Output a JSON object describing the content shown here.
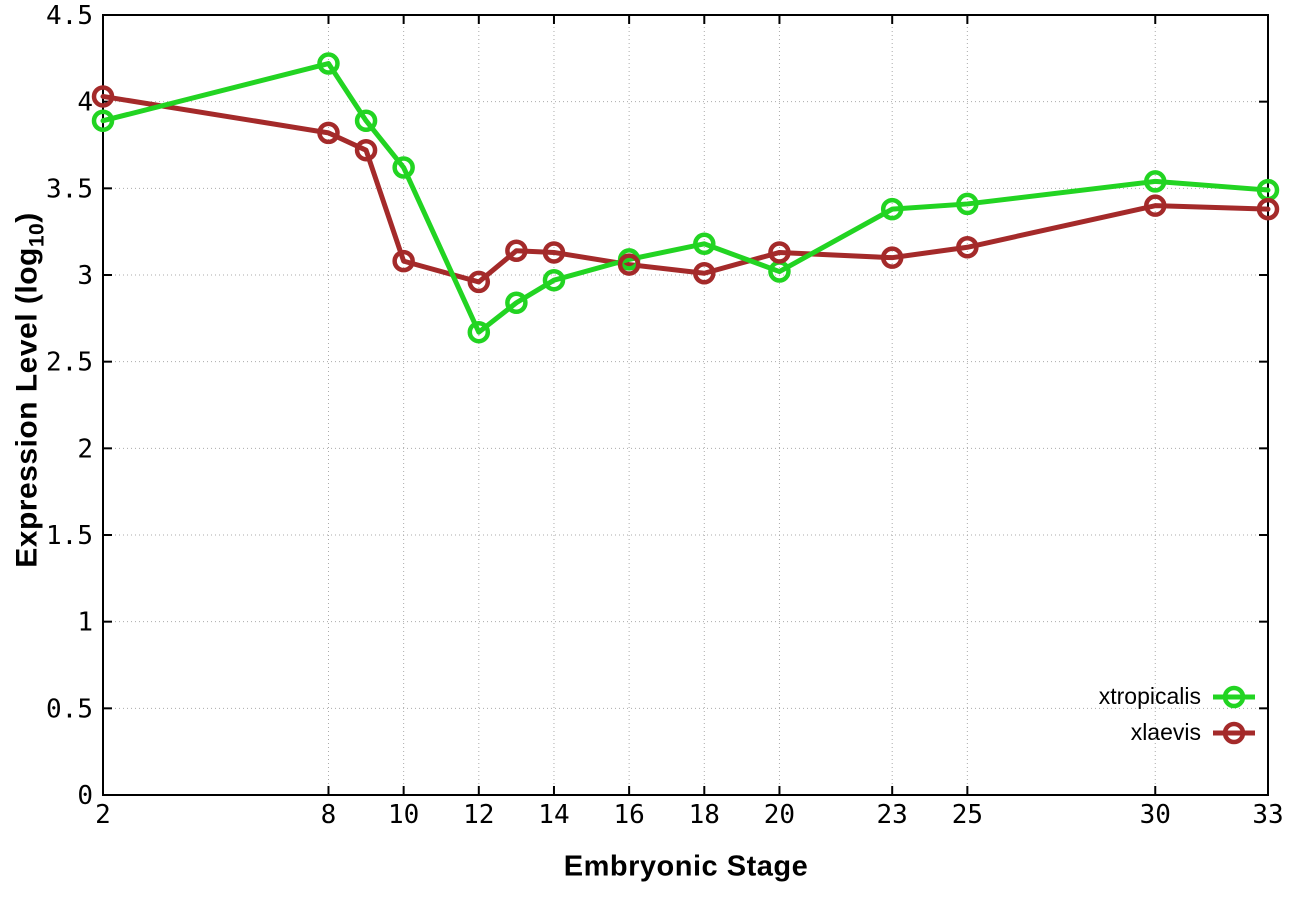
{
  "chart_data": {
    "type": "line",
    "title": "",
    "xlabel": "Embryonic Stage",
    "ylabel": "Expression Level (log10)",
    "ylabel_parts": {
      "main": "Expression Level (log",
      "sub": "10",
      "end": ")"
    },
    "x": [
      2,
      8,
      9,
      10,
      12,
      13,
      14,
      16,
      18,
      20,
      23,
      25,
      30,
      33
    ],
    "series": [
      {
        "name": "xtropicalis",
        "color": "#22d422",
        "marker": "open-circle",
        "values": [
          3.89,
          4.22,
          3.89,
          3.62,
          2.67,
          2.84,
          2.97,
          3.09,
          3.18,
          3.02,
          3.38,
          3.41,
          3.54,
          3.49
        ]
      },
      {
        "name": "xlaevis",
        "color": "#a42a2a",
        "marker": "open-circle",
        "values": [
          4.03,
          3.82,
          3.72,
          3.08,
          2.96,
          3.14,
          3.13,
          3.06,
          3.01,
          3.13,
          3.1,
          3.16,
          3.4,
          3.38
        ]
      }
    ],
    "xlim": [
      2,
      33
    ],
    "ylim": [
      0,
      4.5
    ],
    "xticks": [
      2,
      8,
      10,
      12,
      14,
      16,
      18,
      20,
      23,
      25,
      30,
      33
    ],
    "xtick_labels": [
      "2",
      "8",
      "10",
      "12",
      "14",
      "16",
      "18",
      "20",
      "23",
      "25",
      "30",
      "33"
    ],
    "yticks": [
      0,
      0.5,
      1,
      1.5,
      2,
      2.5,
      3,
      3.5,
      4,
      4.5
    ],
    "ytick_labels": [
      "0",
      "0.5",
      "1",
      "1.5",
      "2",
      "2.5",
      "3",
      "3.5",
      "4",
      "4.5"
    ],
    "grid": "dotted",
    "grid_color": "#ababab",
    "axis_color": "#000000",
    "legend_position": "bottom-right"
  }
}
